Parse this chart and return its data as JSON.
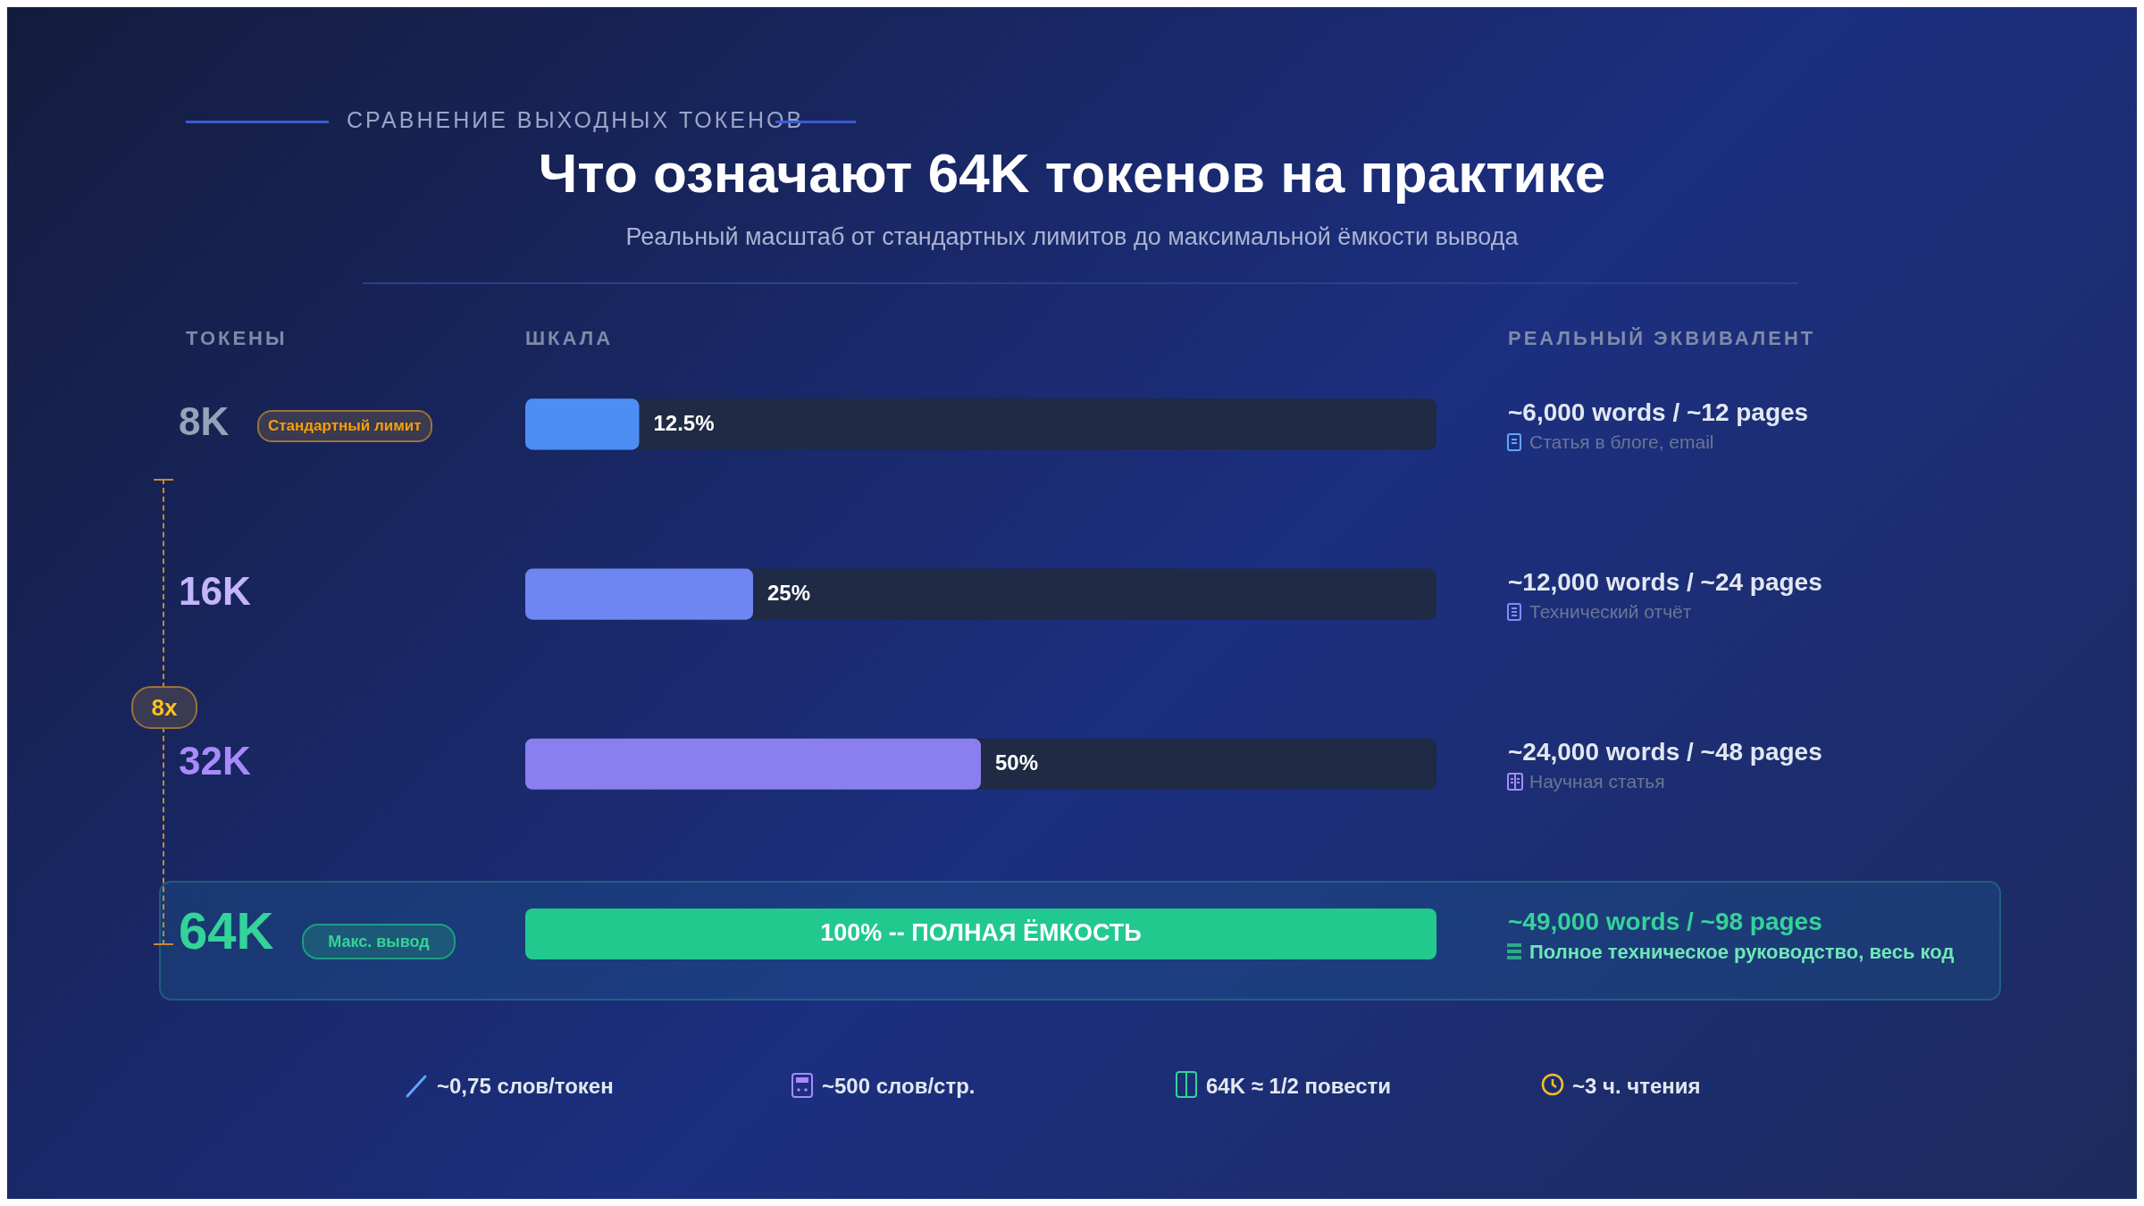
{
  "chart_data": {
    "type": "bar",
    "orientation": "horizontal",
    "title": "Что означают 64K токенов на практике",
    "subtitle": "Реальный масштаб от стандартных лимитов до максимальной ёмкости вывода",
    "categories": [
      "8K",
      "16K",
      "32K",
      "64K"
    ],
    "values": [
      12.5,
      25,
      50,
      100
    ],
    "colors": [
      "#4d8ef5",
      "#6f86f2",
      "#8b7ff0",
      "#22c98f"
    ],
    "value_labels": [
      "12.5%",
      "25%",
      "50%",
      "100% -- ПОЛНАЯ ЁМКОСТЬ"
    ],
    "xlim": [
      0,
      100
    ],
    "legend": false,
    "tick_labels": "y",
    "annotations": [
      "СРАВНЕНИЕ ВЫХОДНЫХ ТОКЕНОВ",
      "ТОКЕНЫ",
      "ШКАЛА",
      "РЕАЛЬНЫЙ ЭКВИВАЛЕНТ",
      "Стандартный лимит",
      "Макс. вывод",
      "8x",
      "~6,000 words / ~12 pages",
      "Статья в блоге, email",
      "~12,000 words / ~24 pages",
      "Технический отчёт",
      "~24,000 words / ~48 pages",
      "Научная статья",
      "~49,000 words / ~98 pages",
      "Полное техническое руководство, весь код",
      "~0,75 слов/токен",
      "~500 слов/стр.",
      "64K ≈ 1/2 повести",
      "~3 ч. чтения"
    ]
  }
}
